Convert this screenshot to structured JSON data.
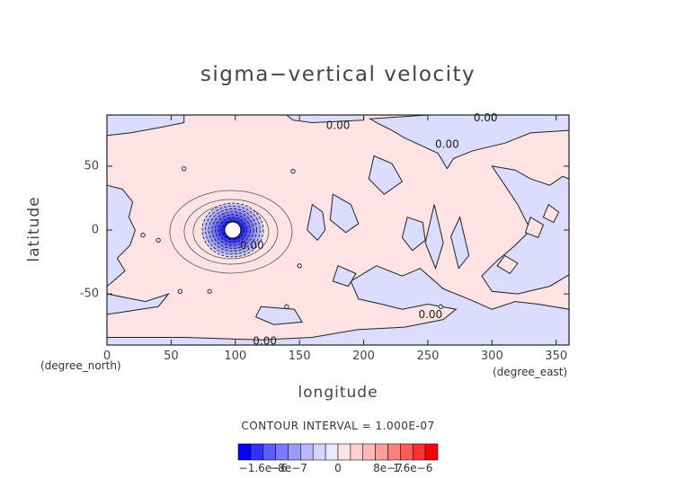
{
  "chart_data": {
    "type": "contour",
    "title": "sigma−vertical velocity",
    "xlabel": "longitude",
    "ylabel": "latitude",
    "x_unit": "(degree_east)",
    "y_unit": "(degree_north)",
    "xlim": [
      0,
      360
    ],
    "ylim": [
      -90,
      90
    ],
    "x_ticks": [
      0,
      50,
      100,
      150,
      200,
      250,
      300,
      350
    ],
    "y_ticks": [
      50,
      0,
      -50
    ],
    "contour_labels": [
      {
        "text": "0.00",
        "lon": 180,
        "lat": 82
      },
      {
        "text": "0.00",
        "lon": 295,
        "lat": 88
      },
      {
        "text": "0.00",
        "lon": 265,
        "lat": 67
      },
      {
        "text": "0.00",
        "lon": 113,
        "lat": -12
      },
      {
        "text": "0.00",
        "lon": 252,
        "lat": -66
      },
      {
        "text": "0.00",
        "lon": 123,
        "lat": -87
      }
    ],
    "contour_interval_text": "CONTOUR INTERVAL = 1.000E-07",
    "colorbar": {
      "labels": [
        "−1.6e−6",
        "−8e−7",
        "0",
        "8e−7",
        "1.6e−6"
      ],
      "colors": [
        "#0000ff",
        "#3030ff",
        "#5c5cff",
        "#7a7aff",
        "#9a9aff",
        "#b8b8ff",
        "#d4d4ff",
        "#e8e8ff",
        "#ffe4e4",
        "#ffd0d0",
        "#ffb8b8",
        "#ff9c9c",
        "#ff7e7e",
        "#ff5a5a",
        "#ff3030",
        "#ff0000"
      ]
    },
    "background_colors": {
      "positive": "#fde3e3",
      "negative": "#dcdcff"
    }
  }
}
